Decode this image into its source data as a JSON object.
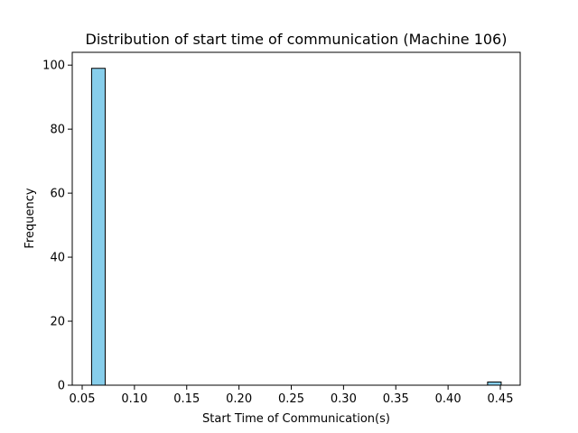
{
  "chart_data": {
    "type": "bar",
    "title": "Distribution of start time of communication (Machine 106)",
    "xlabel": "Start Time of Communication(s)",
    "ylabel": "Frequency",
    "xlim": [
      0.0405,
      0.469
    ],
    "ylim": [
      0,
      104
    ],
    "x_ticks": [
      "0.05",
      "0.10",
      "0.15",
      "0.20",
      "0.25",
      "0.30",
      "0.35",
      "0.40",
      "0.45"
    ],
    "x_tick_values": [
      0.05,
      0.1,
      0.15,
      0.2,
      0.25,
      0.3,
      0.35,
      0.4,
      0.45
    ],
    "y_ticks": [
      "0",
      "20",
      "40",
      "60",
      "80",
      "100"
    ],
    "y_tick_values": [
      0,
      20,
      40,
      60,
      80,
      100
    ],
    "bins": [
      {
        "start": 0.059,
        "end": 0.072,
        "count": 99
      },
      {
        "start": 0.4378,
        "end": 0.4508,
        "count": 1
      }
    ],
    "bar_color": "#87ceeb",
    "edge_color": "#000000",
    "grid": false,
    "legend": "none"
  }
}
